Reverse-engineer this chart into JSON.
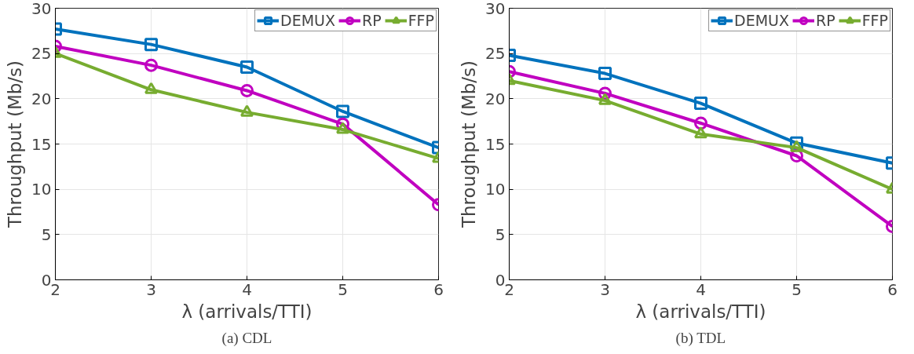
{
  "chart_data": [
    {
      "type": "line",
      "annotations": [
        "(a) CDL"
      ],
      "xlabel": "λ (arrivals/TTI)",
      "ylabel": "Throughput (Mb/s)",
      "x": [
        2,
        3,
        4,
        5,
        6
      ],
      "xlim": [
        2,
        6
      ],
      "xticks": [
        2,
        3,
        4,
        5,
        6
      ],
      "ylim": [
        0,
        30
      ],
      "yticks": [
        0,
        5,
        10,
        15,
        20,
        25,
        30
      ],
      "grid": true,
      "legend": "top right",
      "line_style": "solid",
      "series": [
        {
          "name": "DEMUX",
          "color": "#0072bd",
          "marker": "square",
          "values": [
            27.7,
            26.0,
            23.5,
            18.6,
            14.6
          ]
        },
        {
          "name": "RP",
          "color": "#c000c0",
          "marker": "circle",
          "values": [
            25.8,
            23.7,
            20.9,
            17.2,
            8.3
          ]
        },
        {
          "name": "FFP",
          "color": "#77ac30",
          "marker": "triangle",
          "values": [
            25.0,
            21.0,
            18.5,
            16.6,
            13.4
          ]
        }
      ]
    },
    {
      "type": "line",
      "annotations": [
        "(b) TDL"
      ],
      "xlabel": "λ (arrivals/TTI)",
      "ylabel": "Throughput (Mb/s)",
      "x": [
        2,
        3,
        4,
        5,
        6
      ],
      "xlim": [
        2,
        6
      ],
      "xticks": [
        2,
        3,
        4,
        5,
        6
      ],
      "ylim": [
        0,
        30
      ],
      "yticks": [
        0,
        5,
        10,
        15,
        20,
        25,
        30
      ],
      "grid": true,
      "legend": "top right",
      "line_style": "solid",
      "series": [
        {
          "name": "DEMUX",
          "color": "#0072bd",
          "marker": "square",
          "values": [
            24.8,
            22.8,
            19.5,
            15.1,
            12.9
          ]
        },
        {
          "name": "RP",
          "color": "#c000c0",
          "marker": "circle",
          "values": [
            23.0,
            20.6,
            17.3,
            13.7,
            5.9
          ]
        },
        {
          "name": "FFP",
          "color": "#77ac30",
          "marker": "triangle",
          "values": [
            22.0,
            19.8,
            16.1,
            14.6,
            10.0
          ]
        }
      ]
    }
  ]
}
